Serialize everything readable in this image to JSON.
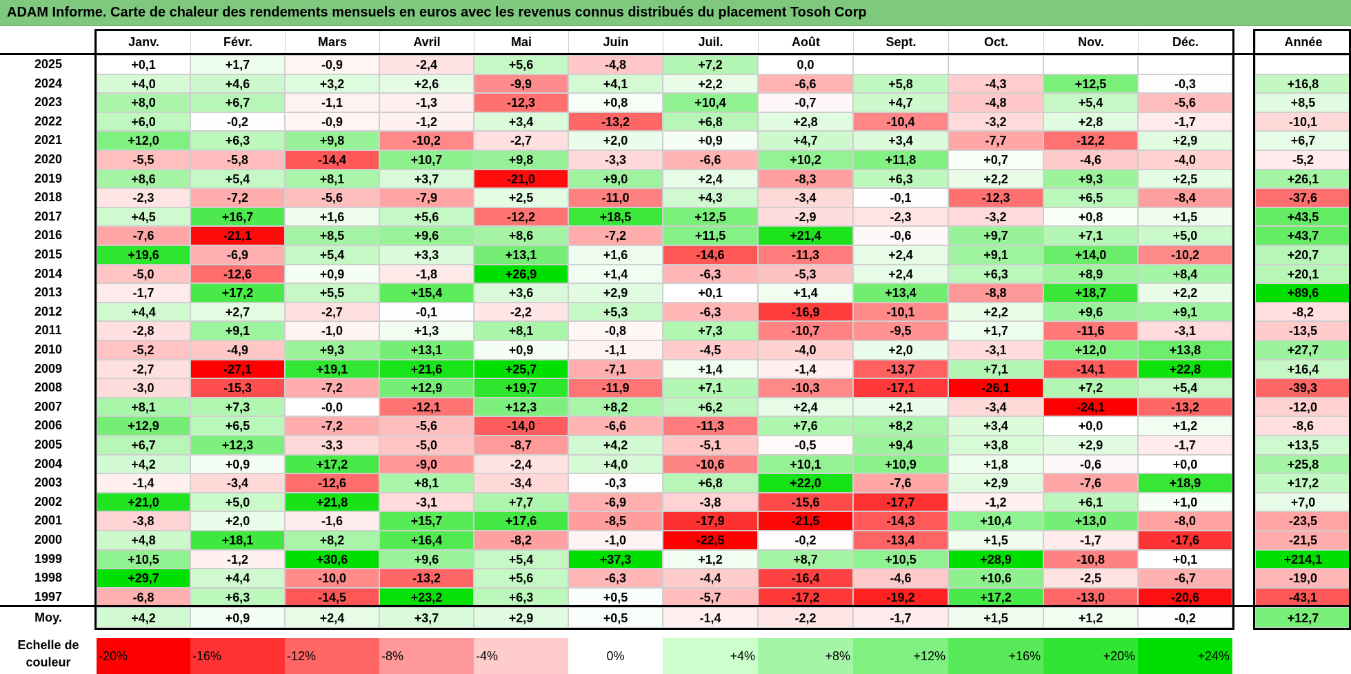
{
  "title": "ADAM Informe. Carte de chaleur des rendements mensuels en euros avec les revenus connus distribués du placement Tosoh Corp",
  "chart_data": {
    "type": "heatmap",
    "title": "ADAM Informe. Carte de chaleur des rendements mensuels en euros avec les revenus connus distribués du placement Tosoh Corp",
    "months": [
      "Janv.",
      "Févr.",
      "Mars",
      "Avril",
      "Mai",
      "Juin",
      "Juil.",
      "Août",
      "Sept.",
      "Oct.",
      "Nov.",
      "Déc."
    ],
    "year_header": "Année",
    "avg_label": "Moy.",
    "rows": [
      {
        "year": "2025",
        "values": [
          "+0,1",
          "+1,7",
          "-0,9",
          "-2,4",
          "+5,6",
          "-4,8",
          "+7,2",
          "0,0",
          "",
          "",
          "",
          ""
        ],
        "annual": ""
      },
      {
        "year": "2024",
        "values": [
          "+4,0",
          "+4,6",
          "+3,2",
          "+2,6",
          "-9,9",
          "+4,1",
          "+2,2",
          "-6,6",
          "+5,8",
          "-4,3",
          "+12,5",
          "-0,3"
        ],
        "annual": "+16,8"
      },
      {
        "year": "2023",
        "values": [
          "+8,0",
          "+6,7",
          "-1,1",
          "-1,3",
          "-12,3",
          "+0,8",
          "+10,4",
          "-0,7",
          "+4,7",
          "-4,8",
          "+5,4",
          "-5,6"
        ],
        "annual": "+8,5"
      },
      {
        "year": "2022",
        "values": [
          "+6,0",
          "-0,2",
          "-0,9",
          "-1,2",
          "+3,4",
          "-13,2",
          "+6,8",
          "+2,8",
          "-10,4",
          "-3,2",
          "+2,8",
          "-1,7"
        ],
        "annual": "-10,1"
      },
      {
        "year": "2021",
        "values": [
          "+12,0",
          "+6,3",
          "+9,8",
          "-10,2",
          "-2,7",
          "+2,0",
          "+0,9",
          "+4,7",
          "+3,4",
          "-7,7",
          "-12,2",
          "+2,9"
        ],
        "annual": "+6,7"
      },
      {
        "year": "2020",
        "values": [
          "-5,5",
          "-5,8",
          "-14,4",
          "+10,7",
          "+9,8",
          "-3,3",
          "-6,6",
          "+10,2",
          "+11,8",
          "+0,7",
          "-4,6",
          "-4,0"
        ],
        "annual": "-5,2"
      },
      {
        "year": "2019",
        "values": [
          "+8,6",
          "+5,4",
          "+8,1",
          "+3,7",
          "-21,0",
          "+9,0",
          "+2,4",
          "-8,3",
          "+6,3",
          "+2,2",
          "+9,3",
          "+2,5"
        ],
        "annual": "+26,1"
      },
      {
        "year": "2018",
        "values": [
          "-2,3",
          "-7,2",
          "-5,6",
          "-7,9",
          "+2,5",
          "-11,0",
          "+4,3",
          "-3,4",
          "-0,1",
          "-12,3",
          "+6,5",
          "-8,4"
        ],
        "annual": "-37,6"
      },
      {
        "year": "2017",
        "values": [
          "+4,5",
          "+16,7",
          "+1,6",
          "+5,6",
          "-12,2",
          "+18,5",
          "+12,5",
          "-2,9",
          "-2,3",
          "-3,2",
          "+0,8",
          "+1,5"
        ],
        "annual": "+43,5"
      },
      {
        "year": "2016",
        "values": [
          "-7,6",
          "-21,1",
          "+8,5",
          "+9,6",
          "+8,6",
          "-7,2",
          "+11,5",
          "+21,4",
          "-0,6",
          "+9,7",
          "+7,1",
          "+5,0"
        ],
        "annual": "+43,7"
      },
      {
        "year": "2015",
        "values": [
          "+19,6",
          "-6,9",
          "+5,4",
          "+3,3",
          "+13,1",
          "+1,6",
          "-14,6",
          "-11,3",
          "+2,4",
          "+9,1",
          "+14,0",
          "-10,2"
        ],
        "annual": "+20,7"
      },
      {
        "year": "2014",
        "values": [
          "-5,0",
          "-12,6",
          "+0,9",
          "-1,8",
          "+26,9",
          "+1,4",
          "-6,3",
          "-5,3",
          "+2,4",
          "+6,3",
          "+8,9",
          "+8,4"
        ],
        "annual": "+20,1"
      },
      {
        "year": "2013",
        "values": [
          "-1,7",
          "+17,2",
          "+5,5",
          "+15,4",
          "+3,6",
          "+2,9",
          "+0,1",
          "+1,4",
          "+13,4",
          "-8,8",
          "+18,7",
          "+2,2"
        ],
        "annual": "+89,6"
      },
      {
        "year": "2012",
        "values": [
          "+4,4",
          "+2,7",
          "-2,7",
          "-0,1",
          "-2,2",
          "+5,3",
          "-6,3",
          "-16,9",
          "-10,1",
          "+2,2",
          "+9,6",
          "+9,1"
        ],
        "annual": "-8,2"
      },
      {
        "year": "2011",
        "values": [
          "-2,8",
          "+9,1",
          "-1,0",
          "+1,3",
          "+8,1",
          "-0,8",
          "+7,3",
          "-10,7",
          "-9,5",
          "+1,7",
          "-11,6",
          "-3,1"
        ],
        "annual": "-13,5"
      },
      {
        "year": "2010",
        "values": [
          "-5,2",
          "-4,9",
          "+9,3",
          "+13,1",
          "+0,9",
          "-1,1",
          "-4,5",
          "-4,0",
          "+2,0",
          "-3,1",
          "+12,0",
          "+13,8"
        ],
        "annual": "+27,7"
      },
      {
        "year": "2009",
        "values": [
          "-2,7",
          "-27,1",
          "+19,1",
          "+21,6",
          "+25,7",
          "-7,1",
          "+1,4",
          "-1,4",
          "-13,7",
          "+7,1",
          "-14,1",
          "+22,8"
        ],
        "annual": "+16,4"
      },
      {
        "year": "2008",
        "values": [
          "-3,0",
          "-15,3",
          "-7,2",
          "+12,9",
          "+19,7",
          "-11,9",
          "+7,1",
          "-10,3",
          "-17,1",
          "-26,1",
          "+7,2",
          "+5,4"
        ],
        "annual": "-39,3"
      },
      {
        "year": "2007",
        "values": [
          "+8,1",
          "+7,3",
          "-0,0",
          "-12,1",
          "+12,3",
          "+8,2",
          "+6,2",
          "+2,4",
          "+2,1",
          "-3,4",
          "-24,1",
          "-13,2"
        ],
        "annual": "-12,0"
      },
      {
        "year": "2006",
        "values": [
          "+12,9",
          "+6,5",
          "-7,2",
          "-5,6",
          "-14,0",
          "-6,6",
          "-11,3",
          "+7,6",
          "+8,2",
          "+3,4",
          "+0,0",
          "+1,2"
        ],
        "annual": "-8,6"
      },
      {
        "year": "2005",
        "values": [
          "+6,7",
          "+12,3",
          "-3,3",
          "-5,0",
          "-8,7",
          "+4,2",
          "-5,1",
          "-0,5",
          "+9,4",
          "+3,8",
          "+2,9",
          "-1,7"
        ],
        "annual": "+13,5"
      },
      {
        "year": "2004",
        "values": [
          "+4,2",
          "+0,9",
          "+17,2",
          "-9,0",
          "-2,4",
          "+4,0",
          "-10,6",
          "+10,1",
          "+10,9",
          "+1,8",
          "-0,6",
          "+0,0"
        ],
        "annual": "+25,8"
      },
      {
        "year": "2003",
        "values": [
          "-1,4",
          "-3,4",
          "-12,6",
          "+8,1",
          "-3,4",
          "-0,3",
          "+6,8",
          "+22,0",
          "-7,6",
          "+2,9",
          "-7,6",
          "+18,9"
        ],
        "annual": "+17,2"
      },
      {
        "year": "2002",
        "values": [
          "+21,0",
          "+5,0",
          "+21,8",
          "-3,1",
          "+7,7",
          "-6,9",
          "-3,8",
          "-15,6",
          "-17,7",
          "-1,2",
          "+6,1",
          "+1,0"
        ],
        "annual": "+7,0"
      },
      {
        "year": "2001",
        "values": [
          "-3,8",
          "+2,0",
          "-1,6",
          "+15,7",
          "+17,6",
          "-8,5",
          "-17,9",
          "-21,5",
          "-14,3",
          "+10,4",
          "+13,0",
          "-8,0"
        ],
        "annual": "-23,5"
      },
      {
        "year": "2000",
        "values": [
          "+4,8",
          "+18,1",
          "+8,2",
          "+16,4",
          "-8,2",
          "-1,0",
          "-22,5",
          "-0,2",
          "-13,4",
          "+1,5",
          "-1,7",
          "-17,6"
        ],
        "annual": "-21,5"
      },
      {
        "year": "1999",
        "values": [
          "+10,5",
          "-1,2",
          "+30,6",
          "+9,6",
          "+5,4",
          "+37,3",
          "+1,2",
          "+8,7",
          "+10,5",
          "+28,9",
          "-10,8",
          "+0,1"
        ],
        "annual": "+214,1"
      },
      {
        "year": "1998",
        "values": [
          "+29,7",
          "+4,4",
          "-10,0",
          "-13,2",
          "+5,6",
          "-6,3",
          "-4,4",
          "-16,4",
          "-4,6",
          "+10,6",
          "-2,5",
          "-6,7"
        ],
        "annual": "-19,0"
      },
      {
        "year": "1997",
        "values": [
          "-6,8",
          "+6,3",
          "-14,5",
          "+23,2",
          "+6,3",
          "+0,5",
          "-5,7",
          "-17,2",
          "-19,2",
          "+17,2",
          "-13,0",
          "-20,6"
        ],
        "annual": "-43,1"
      }
    ],
    "averages": [
      "+4,2",
      "+0,9",
      "+2,4",
      "+3,7",
      "+2,9",
      "+0,5",
      "-1,4",
      "-2,2",
      "-1,7",
      "+1,5",
      "+1,2",
      "-0,2"
    ],
    "average_annual": "+12,7",
    "color_scale": {
      "label": "Echelle de couleur",
      "stops": [
        {
          "label": "-20%",
          "value": -20,
          "color": "#ff0000"
        },
        {
          "label": "-16%",
          "value": -16,
          "color": "#ff3333"
        },
        {
          "label": "-12%",
          "value": -12,
          "color": "#ff6666"
        },
        {
          "label": "-8%",
          "value": -8,
          "color": "#ff9999"
        },
        {
          "label": "-4%",
          "value": -4,
          "color": "#ffcccc"
        },
        {
          "label": "0%",
          "value": 0,
          "color": "#ffffff"
        },
        {
          "label": "+4%",
          "value": 4,
          "color": "#ccffcc"
        },
        {
          "label": "+8%",
          "value": 8,
          "color": "#a6f5a6"
        },
        {
          "label": "+12%",
          "value": 12,
          "color": "#80f080"
        },
        {
          "label": "+16%",
          "value": 16,
          "color": "#59ea59"
        },
        {
          "label": "+20%",
          "value": 20,
          "color": "#33e533"
        },
        {
          "label": "+24%",
          "value": 24,
          "color": "#00e000"
        }
      ]
    }
  }
}
